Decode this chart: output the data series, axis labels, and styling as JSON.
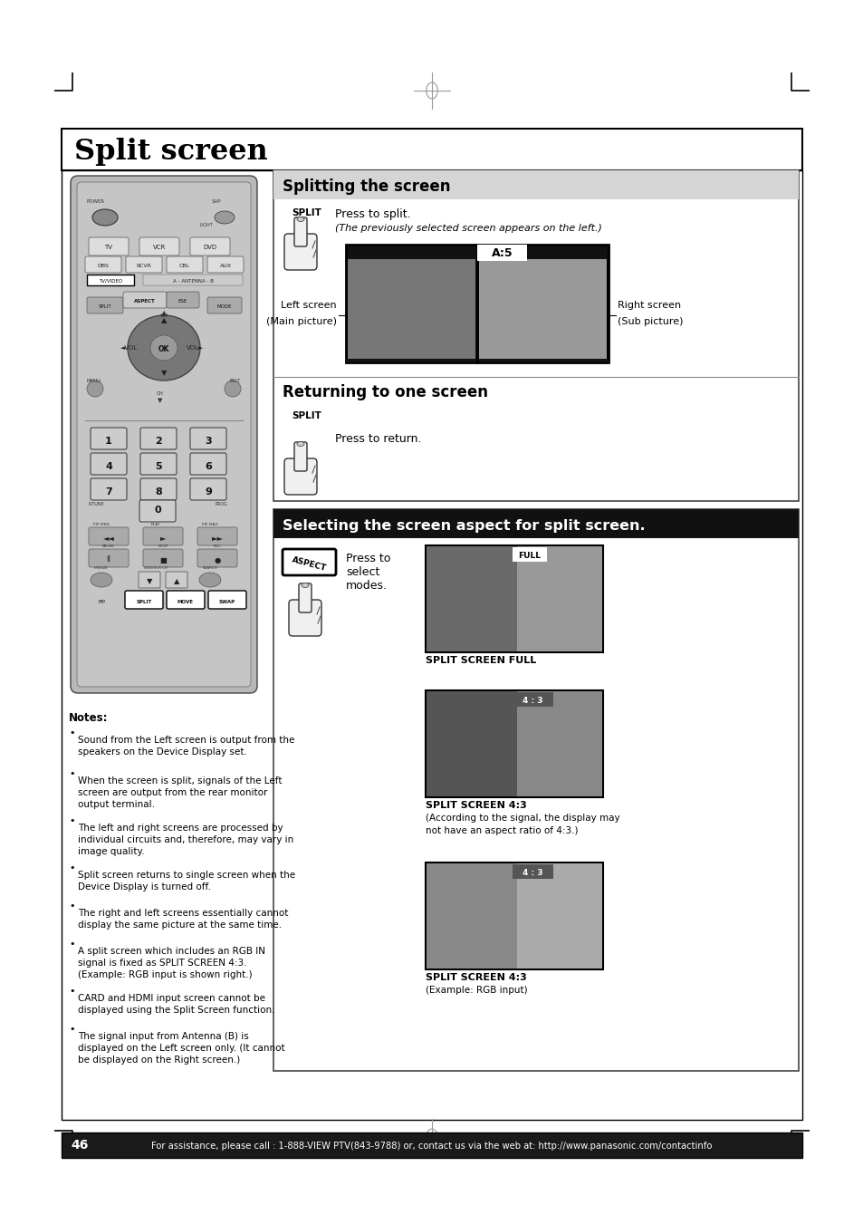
{
  "page_bg": "#ffffff",
  "title": "Split screen",
  "title_fontsize": 22,
  "section1_title": "Splitting the screen",
  "section1_line1": "Press to split.",
  "section1_line2": "(The previously selected screen appears on the left.)",
  "section1_left_label1": "Left screen",
  "section1_left_label2": "(Main picture)",
  "section1_right_label1": "Right screen",
  "section1_right_label2": "(Sub picture)",
  "section1_split_label": "SPLIT",
  "section1_a5_label": "A:5",
  "section2_title": "Returning to one screen",
  "section2_split_label": "SPLIT",
  "section2_line1": "Press to return.",
  "section3_title": "Selecting the screen aspect for split screen.",
  "section3_press": "Press to",
  "section3_select": "select",
  "section3_modes": "modes.",
  "section3_img1_label": "SPLIT SCREEN FULL",
  "section3_img1_tag": "FULL",
  "section3_img2_label": "SPLIT SCREEN 4:3",
  "section3_img2_note1": "(According to the signal, the display may",
  "section3_img2_note2": "not have an aspect ratio of 4:3.)",
  "section3_img2_tag": "4 : 3",
  "section3_img3_label": "SPLIT SCREEN 4:3",
  "section3_img3_note": "(Example: RGB input)",
  "section3_img3_tag": "4 : 3",
  "notes_title": "Notes:",
  "notes": [
    "Sound from the Left screen is output from the\nspeakers on the Device Display set.",
    "When the screen is split, signals of the Left\nscreen are output from the rear monitor\noutput terminal.",
    "The left and right screens are processed by\nindividual circuits and, therefore, may vary in\nimage quality.",
    "Split screen returns to single screen when the\nDevice Display is turned off.",
    "The right and left screens essentially cannot\ndisplay the same picture at the same time.",
    "A split screen which includes an RGB IN\nsignal is fixed as SPLIT SCREEN 4:3.\n(Example: RGB input is shown right.)",
    "CARD and HDMI input screen cannot be\ndisplayed using the Split Screen function.",
    "The signal input from Antenna (B) is\ndisplayed on the Left screen only. (It cannot\nbe displayed on the Right screen.)"
  ],
  "footer_text": "For assistance, please call : 1-888-VIEW PTV(843-9788) or, contact us via the web at: http://www.panasonic.com/contactinfo",
  "footer_page": "46"
}
